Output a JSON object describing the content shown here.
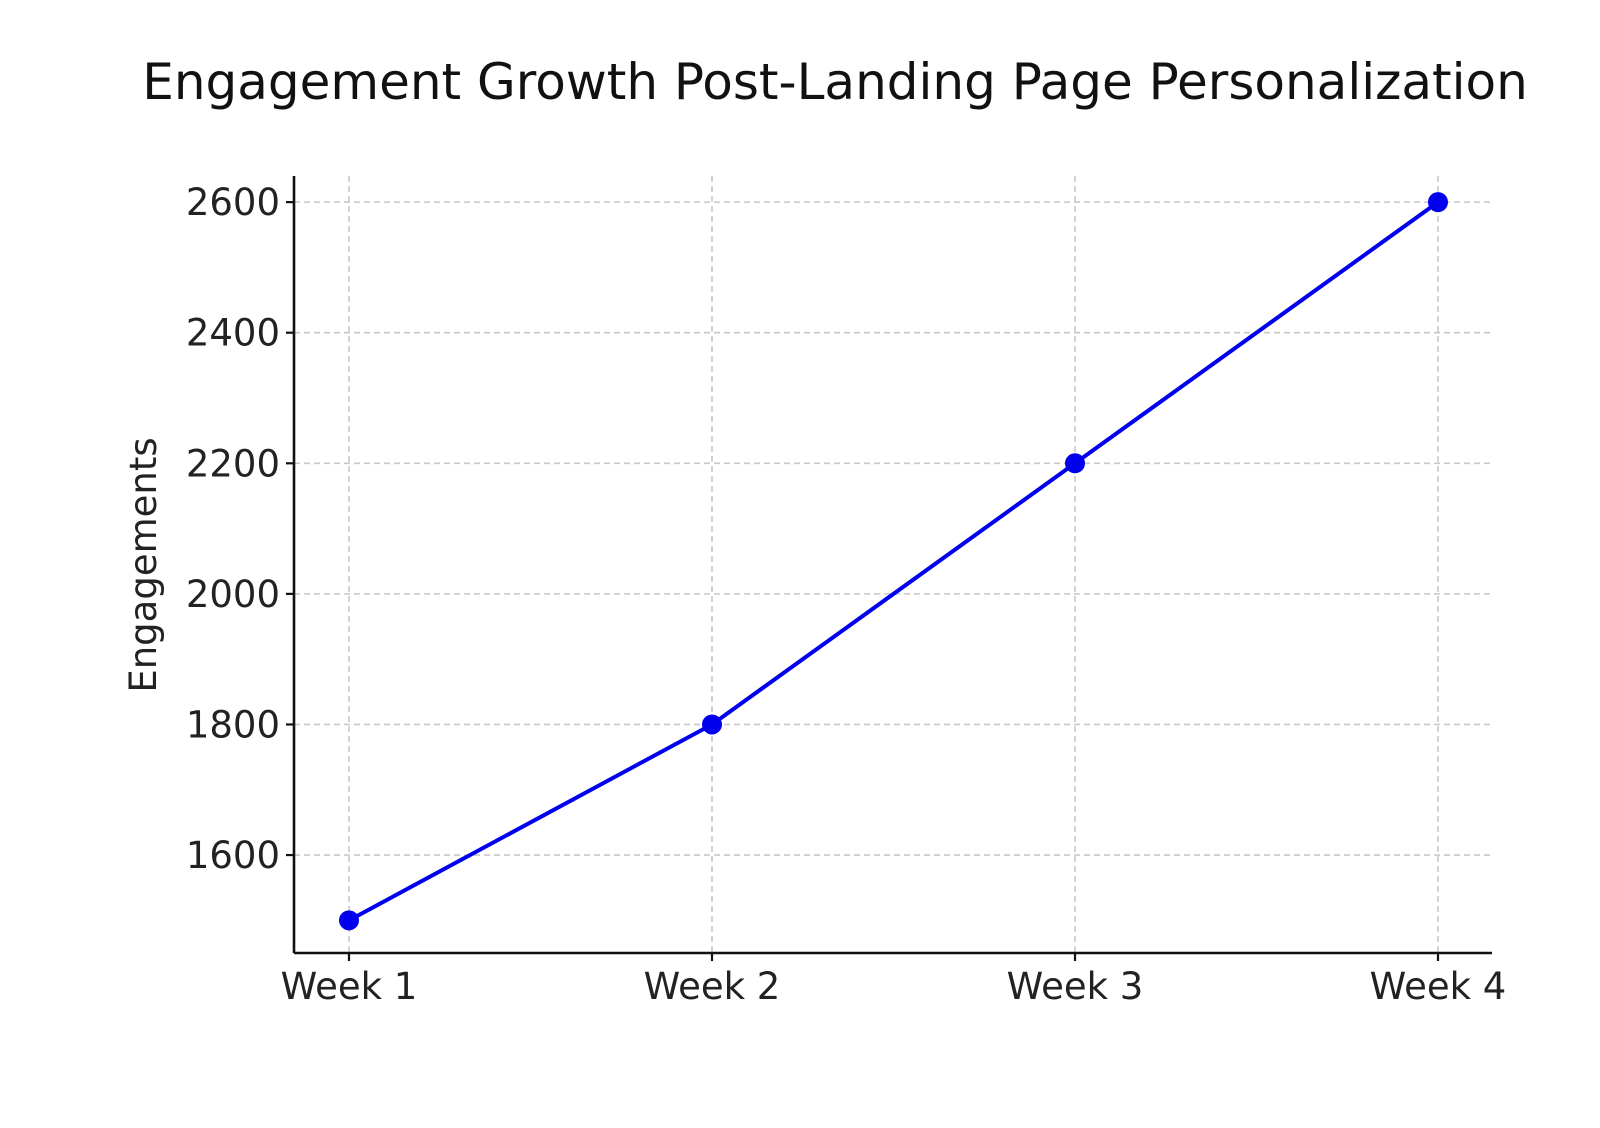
{
  "chart_data": {
    "type": "line",
    "title": "Engagement Growth Post-Landing Page Personalization",
    "xlabel": "",
    "ylabel": "Engagements",
    "categories": [
      "Week 1",
      "Week 2",
      "Week 3",
      "Week 4"
    ],
    "series": [
      {
        "values": [
          1500,
          1800,
          2200,
          2600
        ],
        "color": "#0000ee",
        "marker": "circle"
      }
    ],
    "ylim": [
      1450,
      2640
    ],
    "yticks": [
      1600,
      1800,
      2000,
      2200,
      2400,
      2600
    ],
    "grid": true,
    "legend": "none"
  }
}
